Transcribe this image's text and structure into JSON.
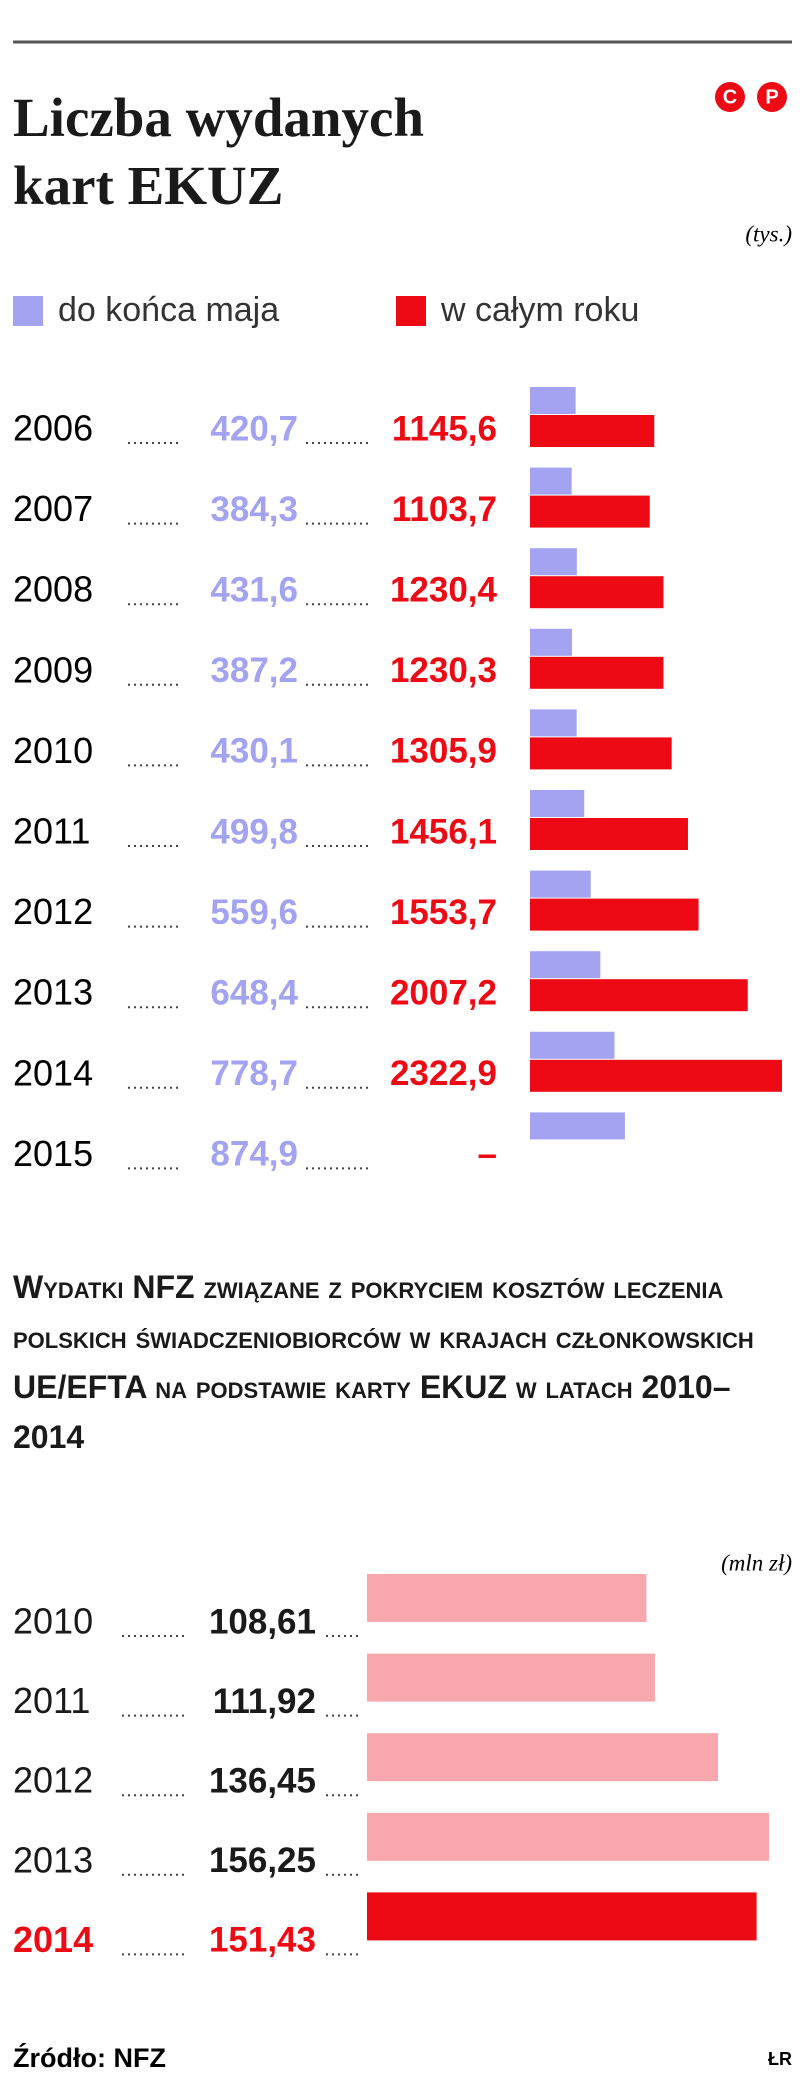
{
  "logo": [
    "C",
    "P"
  ],
  "chart_data": [
    {
      "type": "bar",
      "orientation": "horizontal",
      "title": "Liczba wydanych kart EKUZ",
      "unit": "(tys.)",
      "categories": [
        "2006",
        "2007",
        "2008",
        "2009",
        "2010",
        "2011",
        "2012",
        "2013",
        "2014",
        "2015"
      ],
      "series": [
        {
          "name": "do końca maja",
          "color": "#a3a3f2",
          "values": [
            420.7,
            384.3,
            431.6,
            387.2,
            430.1,
            499.8,
            559.6,
            648.4,
            778.7,
            874.9
          ],
          "value_labels": [
            "420,7",
            "384,3",
            "431,6",
            "387,2",
            "430,1",
            "499,8",
            "559,6",
            "648,4",
            "778,7",
            "874,9"
          ]
        },
        {
          "name": "w całym roku",
          "color": "#ee0a14",
          "values": [
            1145.6,
            1103.7,
            1230.4,
            1230.3,
            1305.9,
            1456.1,
            1553.7,
            2007.2,
            2322.9,
            null
          ],
          "value_labels": [
            "1145,6",
            "1103,7",
            "1230,4",
            "1230,3",
            "1305,9",
            "1456,1",
            "1553,7",
            "2007,2",
            "2322,9",
            "–"
          ]
        }
      ],
      "legend": "top-left"
    },
    {
      "type": "bar",
      "orientation": "horizontal",
      "title": "Wydatki NFZ związane z pokryciem kosztów leczenia polskich świadczeniobiorców w krajach członkowskich UE/EFTA na podstawie karty EKUZ w latach 2010–2014",
      "unit": "(mln zł)",
      "categories": [
        "2010",
        "2011",
        "2012",
        "2013",
        "2014"
      ],
      "values": [
        108.61,
        111.92,
        136.45,
        156.25,
        151.43
      ],
      "value_labels": [
        "108,61",
        "111,92",
        "136,45",
        "156,25",
        "151,43"
      ],
      "colors": [
        "#f8a7ac",
        "#f8a7ac",
        "#f8a7ac",
        "#f8a7ac",
        "#ee0a14"
      ],
      "label_colors": [
        "#1a1a1a",
        "#1a1a1a",
        "#1a1a1a",
        "#1a1a1a",
        "#ee0a14"
      ]
    }
  ],
  "source": "Źródło: NFZ",
  "credit": "ŁR"
}
